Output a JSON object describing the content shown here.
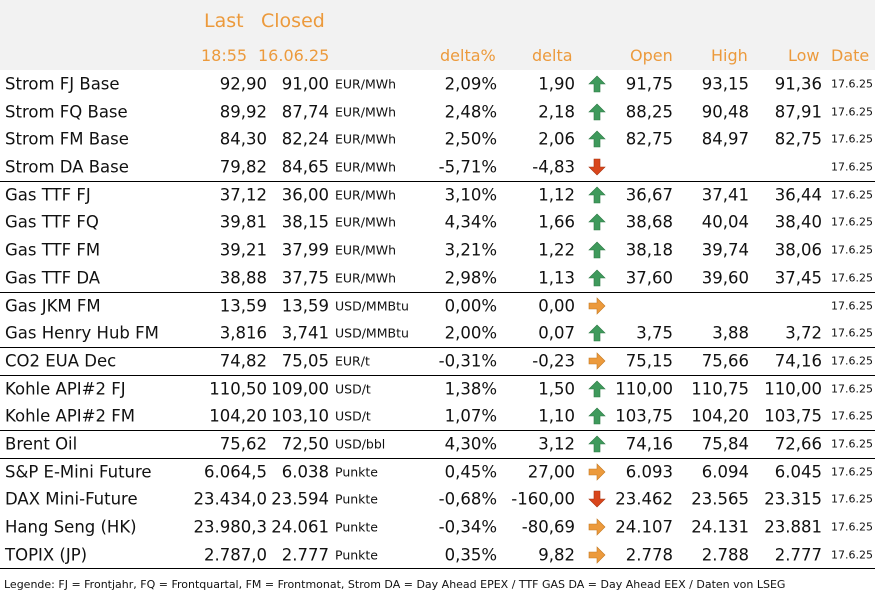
{
  "header": {
    "last": "Last",
    "closed": "Closed",
    "last_time": "18:55",
    "closed_date": "16.06.25",
    "delta_pct": "delta%",
    "delta": "delta",
    "open": "Open",
    "high": "High",
    "low": "Low",
    "date": "Date"
  },
  "colors": {
    "header_text": "#ec9a3c",
    "header_bg": "#f2f2f2",
    "up": "#3f9a5c",
    "down": "#d9461c",
    "side": "#ec9a3c"
  },
  "rows": [
    {
      "name": "Strom FJ Base",
      "last": "92,90",
      "closed": "91,00",
      "unit": "EUR/MWh",
      "dpct": "2,09%",
      "delta": "1,90",
      "trend": "up",
      "open": "91,75",
      "high": "93,15",
      "low": "91,36",
      "date": "17.6.25",
      "sep": false
    },
    {
      "name": "Strom FQ Base",
      "last": "89,92",
      "closed": "87,74",
      "unit": "EUR/MWh",
      "dpct": "2,48%",
      "delta": "2,18",
      "trend": "up",
      "open": "88,25",
      "high": "90,48",
      "low": "87,91",
      "date": "17.6.25",
      "sep": false
    },
    {
      "name": "Strom FM Base",
      "last": "84,30",
      "closed": "82,24",
      "unit": "EUR/MWh",
      "dpct": "2,50%",
      "delta": "2,06",
      "trend": "up",
      "open": "82,75",
      "high": "84,97",
      "low": "82,75",
      "date": "17.6.25",
      "sep": false
    },
    {
      "name": "Strom DA Base",
      "last": "79,82",
      "closed": "84,65",
      "unit": "EUR/MWh",
      "dpct": "-5,71%",
      "delta": "-4,83",
      "trend": "down",
      "open": "",
      "high": "",
      "low": "",
      "date": "17.6.25",
      "sep": false
    },
    {
      "name": "Gas TTF FJ",
      "last": "37,12",
      "closed": "36,00",
      "unit": "EUR/MWh",
      "dpct": "3,10%",
      "delta": "1,12",
      "trend": "up",
      "open": "36,67",
      "high": "37,41",
      "low": "36,44",
      "date": "17.6.25",
      "sep": true
    },
    {
      "name": "Gas TTF FQ",
      "last": "39,81",
      "closed": "38,15",
      "unit": "EUR/MWh",
      "dpct": "4,34%",
      "delta": "1,66",
      "trend": "up",
      "open": "38,68",
      "high": "40,04",
      "low": "38,40",
      "date": "17.6.25",
      "sep": false
    },
    {
      "name": "Gas TTF FM",
      "last": "39,21",
      "closed": "37,99",
      "unit": "EUR/MWh",
      "dpct": "3,21%",
      "delta": "1,22",
      "trend": "up",
      "open": "38,18",
      "high": "39,74",
      "low": "38,06",
      "date": "17.6.25",
      "sep": false
    },
    {
      "name": "Gas TTF DA",
      "last": "38,88",
      "closed": "37,75",
      "unit": "EUR/MWh",
      "dpct": "2,98%",
      "delta": "1,13",
      "trend": "up",
      "open": "37,60",
      "high": "39,60",
      "low": "37,45",
      "date": "17.6.25",
      "sep": false
    },
    {
      "name": "Gas JKM FM",
      "last": "13,59",
      "closed": "13,59",
      "unit": "USD/MMBtu",
      "dpct": "0,00%",
      "delta": "0,00",
      "trend": "side",
      "open": "",
      "high": "",
      "low": "",
      "date": "17.6.25",
      "sep": true
    },
    {
      "name": "Gas Henry Hub FM",
      "last": "3,816",
      "closed": "3,741",
      "unit": "USD/MMBtu",
      "dpct": "2,00%",
      "delta": "0,07",
      "trend": "up",
      "open": "3,75",
      "high": "3,88",
      "low": "3,72",
      "date": "17.6.25",
      "sep": false
    },
    {
      "name": "CO2 EUA Dec",
      "last": "74,82",
      "closed": "75,05",
      "unit": "EUR/t",
      "dpct": "-0,31%",
      "delta": "-0,23",
      "trend": "side",
      "open": "75,15",
      "high": "75,66",
      "low": "74,16",
      "date": "17.6.25",
      "sep": true
    },
    {
      "name": "Kohle API#2 FJ",
      "last": "110,50",
      "closed": "109,00",
      "unit": "USD/t",
      "dpct": "1,38%",
      "delta": "1,50",
      "trend": "up",
      "open": "110,00",
      "high": "110,75",
      "low": "110,00",
      "date": "17.6.25",
      "sep": true
    },
    {
      "name": "Kohle API#2 FM",
      "last": "104,20",
      "closed": "103,10",
      "unit": "USD/t",
      "dpct": "1,07%",
      "delta": "1,10",
      "trend": "up",
      "open": "103,75",
      "high": "104,20",
      "low": "103,75",
      "date": "17.6.25",
      "sep": false
    },
    {
      "name": "Brent Oil",
      "last": "75,62",
      "closed": "72,50",
      "unit": "USD/bbl",
      "dpct": "4,30%",
      "delta": "3,12",
      "trend": "up",
      "open": "74,16",
      "high": "75,84",
      "low": "72,66",
      "date": "17.6.25",
      "sep": true
    },
    {
      "name": "S&P E-Mini Future",
      "last": "6.064,5",
      "closed": "6.038",
      "unit": "Punkte",
      "dpct": "0,45%",
      "delta": "27,00",
      "trend": "side",
      "open": "6.093",
      "high": "6.094",
      "low": "6.045",
      "date": "17.6.25",
      "sep": true
    },
    {
      "name": "DAX Mini-Future",
      "last": "23.434,0",
      "closed": "23.594",
      "unit": "Punkte",
      "dpct": "-0,68%",
      "delta": "-160,00",
      "trend": "down",
      "open": "23.462",
      "high": "23.565",
      "low": "23.315",
      "date": "17.6.25",
      "sep": false
    },
    {
      "name": "Hang Seng (HK)",
      "last": "23.980,3",
      "closed": "24.061",
      "unit": "Punkte",
      "dpct": "-0,34%",
      "delta": "-80,69",
      "trend": "side",
      "open": "24.107",
      "high": "24.131",
      "low": "23.881",
      "date": "17.6.25",
      "sep": false
    },
    {
      "name": "TOPIX (JP)",
      "last": "2.787,0",
      "closed": "2.777",
      "unit": "Punkte",
      "dpct": "0,35%",
      "delta": "9,82",
      "trend": "side",
      "open": "2.778",
      "high": "2.788",
      "low": "2.777",
      "date": "17.6.25",
      "sep": false
    }
  ],
  "legend": "Legende: FJ = Frontjahr, FQ = Frontquartal, FM = Frontmonat, Strom DA = Day Ahead EPEX / TTF GAS DA = Day Ahead EEX / Daten von LSEG"
}
